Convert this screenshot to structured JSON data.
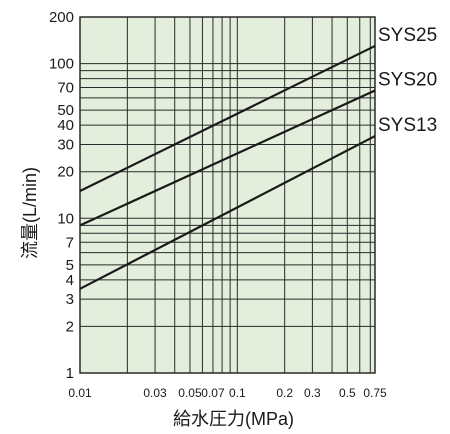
{
  "chart_data": {
    "type": "line",
    "x_scale": "log",
    "y_scale": "log",
    "xlabel": "給水圧力(MPa)",
    "ylabel": "流量(L/min)",
    "xlim": [
      0.01,
      0.75
    ],
    "ylim": [
      1,
      200
    ],
    "x_tick_labels": [
      {
        "value": 0.01,
        "label": "0.01"
      },
      {
        "value": 0.03,
        "label": "0.03"
      },
      {
        "value": 0.05,
        "label": "0.05"
      },
      {
        "value": 0.07,
        "label": "0.07"
      },
      {
        "value": 0.1,
        "label": "0.1"
      },
      {
        "value": 0.2,
        "label": "0.2"
      },
      {
        "value": 0.3,
        "label": "0.3"
      },
      {
        "value": 0.5,
        "label": "0.5"
      },
      {
        "value": 0.75,
        "label": "0.75"
      }
    ],
    "y_tick_labels": [
      {
        "value": 1,
        "label": "1"
      },
      {
        "value": 2,
        "label": "2"
      },
      {
        "value": 3,
        "label": "3"
      },
      {
        "value": 4,
        "label": "4"
      },
      {
        "value": 5,
        "label": "5"
      },
      {
        "value": 7,
        "label": "7"
      },
      {
        "value": 10,
        "label": "10"
      },
      {
        "value": 20,
        "label": "20"
      },
      {
        "value": 30,
        "label": "30"
      },
      {
        "value": 40,
        "label": "40"
      },
      {
        "value": 50,
        "label": "50"
      },
      {
        "value": 70,
        "label": "70"
      },
      {
        "value": 100,
        "label": "100"
      },
      {
        "value": 200,
        "label": "200"
      }
    ],
    "x_gridlines": [
      0.01,
      0.02,
      0.03,
      0.04,
      0.05,
      0.06,
      0.07,
      0.08,
      0.09,
      0.1,
      0.2,
      0.3,
      0.4,
      0.5,
      0.6,
      0.7,
      0.75
    ],
    "y_gridlines": [
      1,
      2,
      3,
      4,
      5,
      6,
      7,
      8,
      9,
      10,
      20,
      30,
      40,
      50,
      60,
      70,
      80,
      90,
      100,
      200
    ],
    "grid": true,
    "series": [
      {
        "name": "SYS25",
        "x": [
          0.01,
          0.75
        ],
        "y": [
          15,
          130
        ]
      },
      {
        "name": "SYS20",
        "x": [
          0.01,
          0.75
        ],
        "y": [
          9,
          67
        ]
      },
      {
        "name": "SYS13",
        "x": [
          0.01,
          0.75
        ],
        "y": [
          3.5,
          34
        ]
      }
    ],
    "colors": {
      "plot_background": "#e3efdc",
      "grid": "#2a2a2a",
      "line": "#1a1a1a",
      "text": "#1a1a1a"
    }
  }
}
